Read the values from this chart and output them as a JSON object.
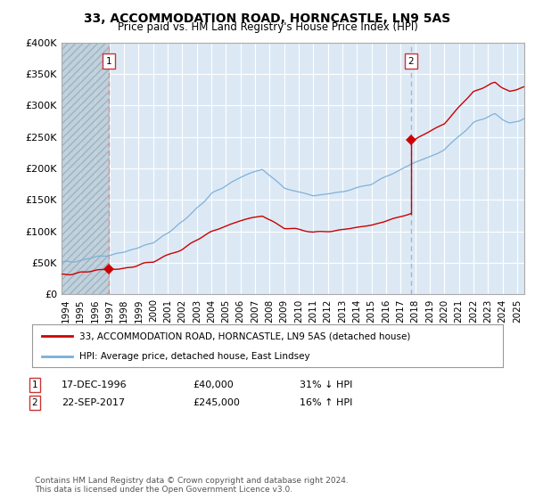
{
  "title": "33, ACCOMMODATION ROAD, HORNCASTLE, LN9 5AS",
  "subtitle": "Price paid vs. HM Land Registry's House Price Index (HPI)",
  "sale1_date_num": 1996.96,
  "sale1_price": 40000,
  "sale1_label": "1",
  "sale2_date_num": 2017.72,
  "sale2_price": 245000,
  "sale2_label": "2",
  "hpi_color": "#7aaed6",
  "price_color": "#cc0000",
  "sale1_vline_color": "#e88080",
  "sale2_vline_color": "#aaaacc",
  "background_color": "#dce9f5",
  "hatch_color": "#b8c8d8",
  "legend_line1": "33, ACCOMMODATION ROAD, HORNCASTLE, LN9 5AS (detached house)",
  "legend_line2": "HPI: Average price, detached house, East Lindsey",
  "footer": "Contains HM Land Registry data © Crown copyright and database right 2024.\nThis data is licensed under the Open Government Licence v3.0.",
  "ylim": [
    0,
    400000
  ],
  "xlim_start": 1993.7,
  "xlim_end": 2025.5,
  "yticks": [
    0,
    50000,
    100000,
    150000,
    200000,
    250000,
    300000,
    350000,
    400000
  ]
}
